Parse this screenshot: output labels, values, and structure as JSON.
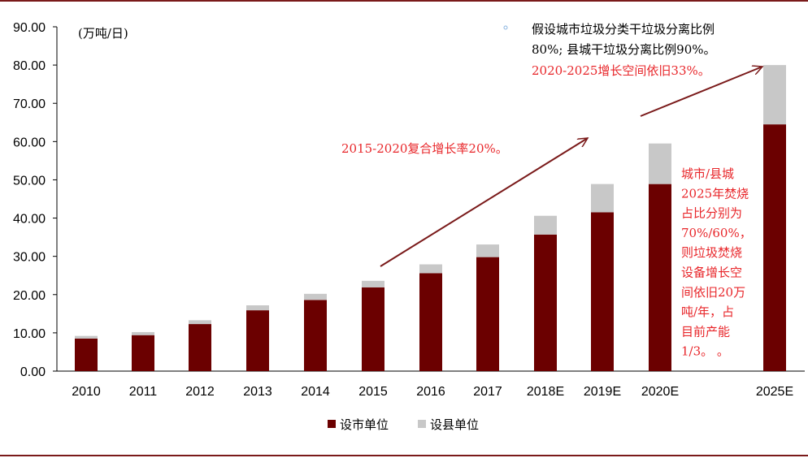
{
  "colors": {
    "city": "#6b0000",
    "county": "#c8c8c8",
    "annotation_red": "#e8262a",
    "arrow": "#7a1a1a",
    "frame": "#7a1a1a",
    "note_dot": "#8ab4e0"
  },
  "chart_data": {
    "type": "bar",
    "stacked": true,
    "categories": [
      "2010",
      "2011",
      "2012",
      "2013",
      "2014",
      "2015",
      "2016",
      "2017",
      "2018E",
      "2019E",
      "2020E",
      "2025E"
    ],
    "series": [
      {
        "name": "设市单位",
        "values": [
          8.5,
          9.4,
          12.3,
          15.9,
          18.6,
          21.9,
          25.6,
          29.8,
          35.7,
          41.5,
          48.9,
          64.5
        ]
      },
      {
        "name": "设县单位",
        "values": [
          0.7,
          0.8,
          1.0,
          1.3,
          1.6,
          1.7,
          2.3,
          3.3,
          4.9,
          7.4,
          10.6,
          15.5
        ]
      }
    ],
    "ylim": [
      0,
      90
    ],
    "yticks": [
      "0.00",
      "10.00",
      "20.00",
      "30.00",
      "40.00",
      "50.00",
      "60.00",
      "70.00",
      "80.00",
      "90.00"
    ],
    "unit_label": "(万吨/日)",
    "legend_position": "bottom",
    "annotations": {
      "note_top": [
        "假设城市垃圾分类干垃圾分离比例",
        "80%; 县城干垃圾分离比例90%。"
      ],
      "growth_2025": "2020-2025增长空间依旧33%。",
      "growth_2015_2020": "2015-2020复合增长率20%。",
      "incineration_note": [
        "城市/县城",
        "2025年焚烧",
        "占比分别为",
        "70%/60%，",
        "则垃圾焚烧",
        "设备增长空",
        "间依旧20万",
        "吨/年，占",
        "目前产能",
        "1/3。 。"
      ]
    }
  }
}
